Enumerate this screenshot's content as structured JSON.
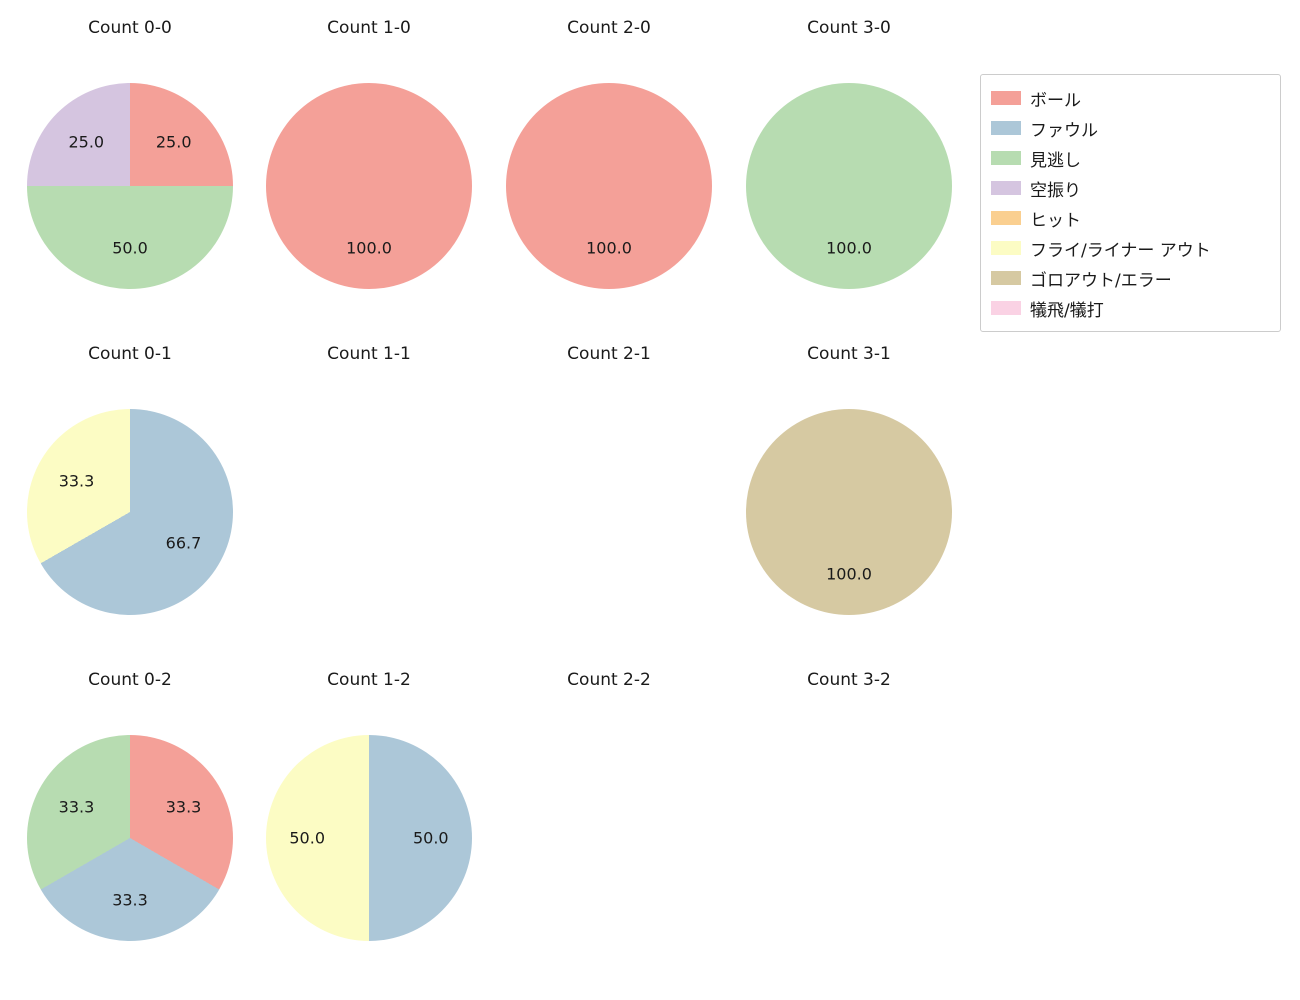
{
  "figure": {
    "background": "#ffffff",
    "text_color": "#1a1a1a"
  },
  "layout": {
    "grid_rows": 3,
    "grid_cols": 4,
    "legend_position": "upper right"
  },
  "legend": {
    "items": [
      {
        "label": "ボール",
        "color": "#f4a098"
      },
      {
        "label": "ファウル",
        "color": "#acc7d8"
      },
      {
        "label": "見逃し",
        "color": "#b7dcb1"
      },
      {
        "label": "空振り",
        "color": "#d5c5e0"
      },
      {
        "label": "ヒット",
        "color": "#facf90"
      },
      {
        "label": "フライ/ライナー アウト",
        "color": "#fcfcc4"
      },
      {
        "label": "ゴロアウト/エラー",
        "color": "#d6c9a2"
      },
      {
        "label": "犠飛/犠打",
        "color": "#fad2e4"
      }
    ]
  },
  "chart_data": [
    {
      "type": "pie",
      "title": "Count 0-0",
      "start_angle": 90,
      "counterclock": false,
      "label_radius": 0.6,
      "slices": [
        {
          "label": "ボール",
          "value": 25.0,
          "pct_label": "25.0"
        },
        {
          "label": "見逃し",
          "value": 50.0,
          "pct_label": "50.0"
        },
        {
          "label": "空振り",
          "value": 25.0,
          "pct_label": "25.0"
        }
      ]
    },
    {
      "type": "pie",
      "title": "Count 1-0",
      "start_angle": 90,
      "counterclock": false,
      "label_radius": 0.6,
      "slices": [
        {
          "label": "ボール",
          "value": 100.0,
          "pct_label": "100.0"
        }
      ]
    },
    {
      "type": "pie",
      "title": "Count 2-0",
      "start_angle": 90,
      "counterclock": false,
      "label_radius": 0.6,
      "slices": [
        {
          "label": "ボール",
          "value": 100.0,
          "pct_label": "100.0"
        }
      ]
    },
    {
      "type": "pie",
      "title": "Count 3-0",
      "start_angle": 90,
      "counterclock": false,
      "label_radius": 0.6,
      "slices": [
        {
          "label": "見逃し",
          "value": 100.0,
          "pct_label": "100.0"
        }
      ]
    },
    {
      "type": "pie",
      "title": "Count 0-1",
      "start_angle": 90,
      "counterclock": false,
      "label_radius": 0.6,
      "slices": [
        {
          "label": "ファウル",
          "value": 66.7,
          "pct_label": "66.7"
        },
        {
          "label": "フライ/ライナー アウト",
          "value": 33.3,
          "pct_label": "33.3"
        }
      ]
    },
    {
      "type": "pie",
      "title": "Count 1-1",
      "start_angle": 90,
      "counterclock": false,
      "label_radius": 0.6,
      "slices": []
    },
    {
      "type": "pie",
      "title": "Count 2-1",
      "start_angle": 90,
      "counterclock": false,
      "label_radius": 0.6,
      "slices": []
    },
    {
      "type": "pie",
      "title": "Count 3-1",
      "start_angle": 90,
      "counterclock": false,
      "label_radius": 0.6,
      "slices": [
        {
          "label": "ゴロアウト/エラー",
          "value": 100.0,
          "pct_label": "100.0"
        }
      ]
    },
    {
      "type": "pie",
      "title": "Count 0-2",
      "start_angle": 90,
      "counterclock": false,
      "label_radius": 0.6,
      "slices": [
        {
          "label": "ボール",
          "value": 33.3,
          "pct_label": "33.3"
        },
        {
          "label": "ファウル",
          "value": 33.3,
          "pct_label": "33.3"
        },
        {
          "label": "見逃し",
          "value": 33.3,
          "pct_label": "33.3"
        }
      ]
    },
    {
      "type": "pie",
      "title": "Count 1-2",
      "start_angle": 90,
      "counterclock": false,
      "label_radius": 0.6,
      "slices": [
        {
          "label": "ファウル",
          "value": 50.0,
          "pct_label": "50.0"
        },
        {
          "label": "フライ/ライナー アウト",
          "value": 50.0,
          "pct_label": "50.0"
        }
      ]
    },
    {
      "type": "pie",
      "title": "Count 2-2",
      "start_angle": 90,
      "counterclock": false,
      "label_radius": 0.6,
      "slices": []
    },
    {
      "type": "pie",
      "title": "Count 3-2",
      "start_angle": 90,
      "counterclock": false,
      "label_radius": 0.6,
      "slices": []
    }
  ]
}
